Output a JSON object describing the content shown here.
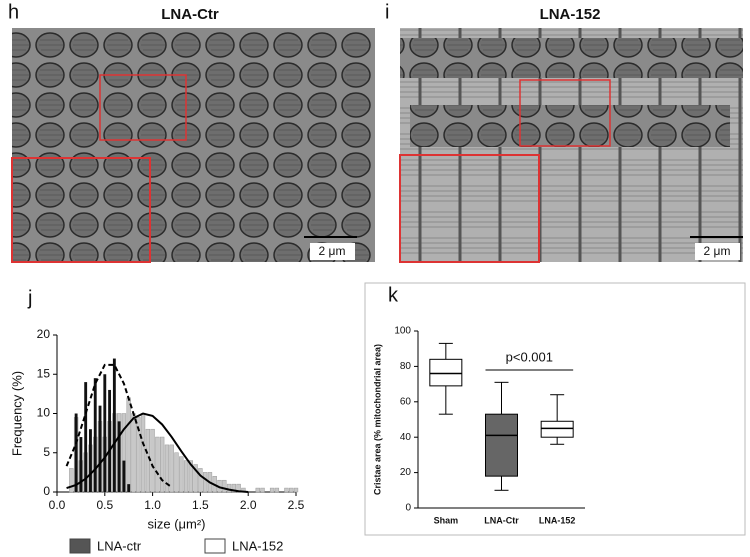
{
  "images": [
    {
      "panel": "h",
      "title": "LNA-Ctr",
      "scale_label": "2 μm"
    },
    {
      "panel": "i",
      "title": "LNA-152",
      "scale_label": "2 μm"
    }
  ],
  "chart_data": [
    {
      "type": "bar",
      "panel": "j",
      "x_label": "size (μm²)",
      "y_label": "Frequency (%)",
      "x": [
        0.15,
        0.2,
        0.25,
        0.3,
        0.35,
        0.4,
        0.45,
        0.5,
        0.55,
        0.6,
        0.65,
        0.7,
        0.75,
        0.8,
        0.85,
        0.9,
        0.95,
        1.0,
        1.05,
        1.1,
        1.15,
        1.2,
        1.25,
        1.3,
        1.35,
        1.4,
        1.45,
        1.5,
        1.55,
        1.6,
        1.65,
        1.7,
        1.75,
        1.8,
        1.85,
        1.9,
        1.95,
        2.0,
        2.05,
        2.1,
        2.15,
        2.2,
        2.25,
        2.3,
        2.35,
        2.4,
        2.45,
        2.5
      ],
      "series": [
        {
          "name": "LNA-ctr",
          "color": "#111111",
          "legend_color": "#555555",
          "dash": true,
          "values": [
            null,
            10,
            7,
            14,
            8,
            14.5,
            11,
            15,
            13,
            17,
            9,
            4,
            1,
            null,
            null,
            null,
            null,
            null,
            null,
            null,
            null,
            null,
            null,
            null,
            null,
            null,
            null,
            null,
            null,
            null,
            null,
            null,
            null,
            null,
            null,
            null,
            null,
            null,
            null,
            null,
            null,
            null,
            null,
            null,
            null,
            null,
            null,
            null
          ],
          "fit_x": [
            0.1,
            0.2,
            0.3,
            0.4,
            0.5,
            0.6,
            0.7,
            0.8,
            0.9,
            1.0,
            1.1,
            1.2
          ],
          "fit_y": [
            3.3,
            6.2,
            10,
            13.8,
            16.2,
            16.2,
            13.8,
            10,
            6.2,
            3.3,
            1.5,
            0.6
          ]
        },
        {
          "name": "LNA-152",
          "color": "#c8c8c8",
          "legend_color": "#ffffff",
          "dash": false,
          "values": [
            3,
            9.5,
            4,
            5,
            6,
            7,
            9,
            7,
            9,
            10,
            10,
            10,
            12,
            10,
            9.5,
            10,
            8,
            8,
            7,
            7,
            6,
            6,
            5,
            4.5,
            4,
            4,
            3.5,
            3,
            2.5,
            2.5,
            2,
            1.5,
            1.5,
            1,
            1,
            1,
            0.5,
            0,
            0,
            0.5,
            0.5,
            0,
            0.5,
            0.5,
            0,
            0.5,
            0.5,
            0.5
          ],
          "fit_x": [
            0.1,
            0.2,
            0.3,
            0.4,
            0.5,
            0.6,
            0.7,
            0.8,
            0.9,
            1.0,
            1.1,
            1.2,
            1.3,
            1.4,
            1.5,
            1.6,
            1.7,
            1.8,
            1.9,
            2.0
          ],
          "fit_y": [
            0.5,
            0.9,
            1.7,
            2.9,
            4.4,
            6.2,
            8,
            9.4,
            10,
            9.7,
            8.6,
            7,
            5.2,
            3.5,
            2.1,
            1.2,
            0.6,
            0.3,
            0.1,
            0
          ]
        }
      ],
      "xlim": [
        0,
        2.5
      ],
      "xticks": [
        {
          "value": 0,
          "label": "0.0"
        },
        0.5,
        {
          "value": 1,
          "label": "1.0"
        },
        1.5,
        {
          "value": 2,
          "label": "2.0"
        },
        2.5
      ],
      "ylim": [
        0,
        20
      ],
      "yticks": [
        0,
        5,
        10,
        15,
        20
      ]
    },
    {
      "type": "box",
      "panel": "k",
      "y_label": "Cristae area (% mitochondrial area)",
      "annotation": "p<0.001",
      "categories": [
        "Sham",
        "LNA-Ctr",
        "LNA-152"
      ],
      "colors": [
        "#ffffff",
        "#666666",
        "#ffffff"
      ],
      "min": [
        53,
        10,
        36
      ],
      "q1": [
        69,
        18,
        40
      ],
      "median": [
        76,
        41,
        45
      ],
      "q3": [
        84,
        53,
        49
      ],
      "max": [
        93,
        71,
        64
      ],
      "ylim": [
        0,
        100
      ],
      "yticks": [
        0,
        20,
        40,
        60,
        80,
        100
      ]
    }
  ]
}
